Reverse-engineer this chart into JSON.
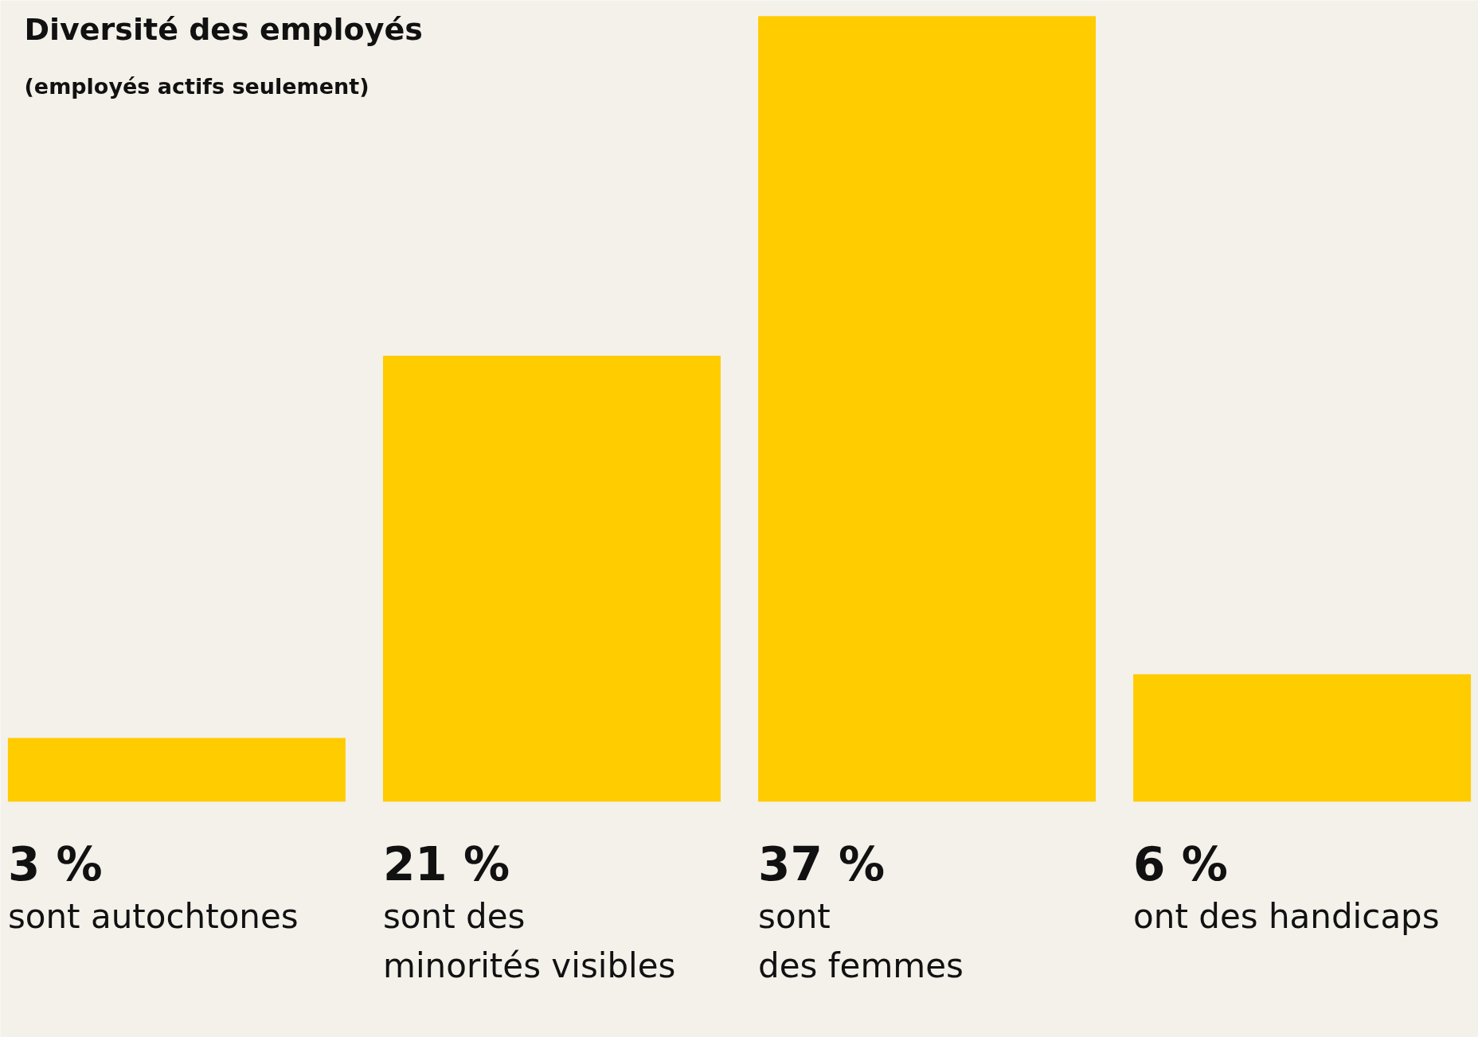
{
  "chart_data": {
    "type": "bar",
    "title": "Diversité des employés",
    "subtitle": "(employés actifs seulement)",
    "categories": [
      "sont autochtones",
      "sont des\nminorités visibles",
      "sont\ndes femmes",
      "ont des handicaps"
    ],
    "values": [
      3,
      21,
      37,
      6
    ],
    "value_labels": [
      "3 %",
      "21 %",
      "37 %",
      "6 %"
    ],
    "color": "#ffcc00"
  }
}
